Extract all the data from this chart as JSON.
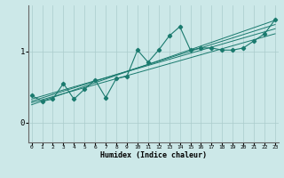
{
  "xlabel": "Humidex (Indice chaleur)",
  "ylabel": "",
  "bg_color": "#cce8e8",
  "grid_color": "#aacccc",
  "line_color": "#1a7a6e",
  "x_ticks": [
    0,
    1,
    2,
    3,
    4,
    5,
    6,
    7,
    8,
    9,
    10,
    11,
    12,
    13,
    14,
    15,
    16,
    17,
    18,
    19,
    20,
    21,
    22,
    23
  ],
  "y_ticks": [
    0,
    1
  ],
  "xlim": [
    -0.3,
    23.3
  ],
  "ylim": [
    -0.28,
    1.65
  ],
  "data_x": [
    0,
    1,
    2,
    3,
    4,
    5,
    6,
    7,
    8,
    9,
    10,
    11,
    12,
    13,
    14,
    15,
    16,
    17,
    18,
    19,
    20,
    21,
    22,
    23
  ],
  "data_y": [
    0.38,
    0.3,
    0.33,
    0.55,
    0.33,
    0.47,
    0.6,
    0.35,
    0.62,
    0.65,
    1.02,
    0.85,
    1.02,
    1.22,
    1.35,
    1.02,
    1.05,
    1.05,
    1.02,
    1.02,
    1.05,
    1.15,
    1.25,
    1.45
  ],
  "reg_lines": [
    [
      0.33,
      1.32
    ],
    [
      0.28,
      1.25
    ],
    [
      0.3,
      1.38
    ],
    [
      0.25,
      1.44
    ]
  ]
}
